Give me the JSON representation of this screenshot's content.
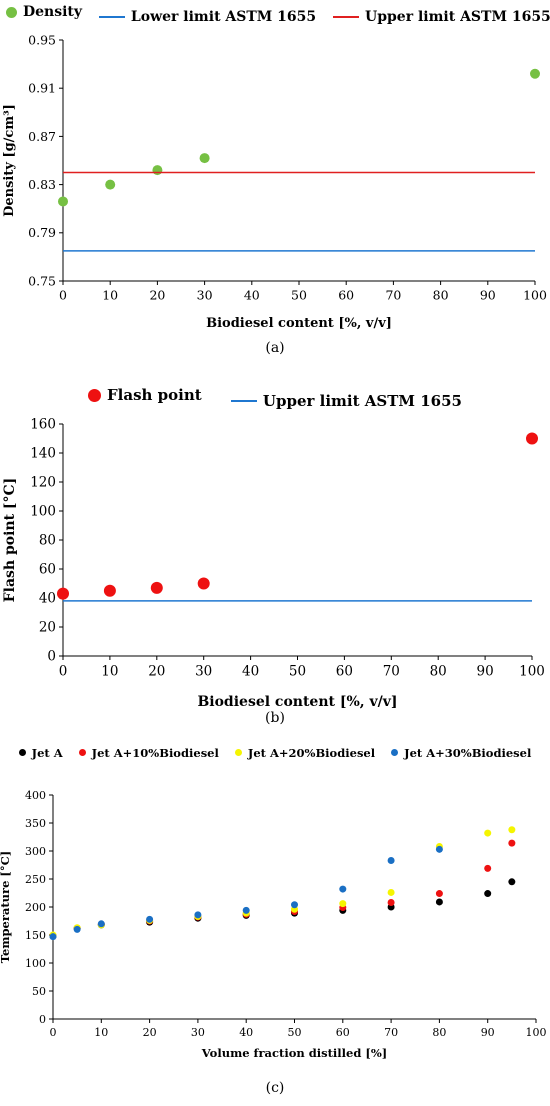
{
  "chart_data": [
    {
      "panel": "a",
      "type": "scatter",
      "xlabel": "Biodiesel content [%, v/v]",
      "ylabel": "Density [g/cm³]",
      "xlim": [
        0,
        100
      ],
      "ylim": [
        0.75,
        0.95
      ],
      "xticks": [
        0,
        10,
        20,
        30,
        40,
        50,
        60,
        70,
        80,
        90,
        100
      ],
      "yticks": [
        0.75,
        0.79,
        0.83,
        0.87,
        0.91,
        0.95
      ],
      "ytick_labels": [
        "0.75",
        "0.79",
        "0.83",
        "0.87",
        "0.91",
        "0.95"
      ],
      "legend_placement": "top",
      "series": [
        {
          "name": "Density",
          "kind": "points",
          "color": "#76c043",
          "x": [
            0,
            10,
            20,
            30,
            100
          ],
          "y": [
            0.816,
            0.83,
            0.842,
            0.852,
            0.922
          ]
        },
        {
          "name": "Lower limit ASTM 1655",
          "kind": "hline",
          "color": "#1f77d0",
          "y": 0.775
        },
        {
          "name": "Upper limit ASTM 1655",
          "kind": "hline",
          "color": "#e02020",
          "y": 0.84
        }
      ],
      "caption": "(a)"
    },
    {
      "panel": "b",
      "type": "scatter",
      "xlabel": "Biodiesel content [%, v/v]",
      "ylabel": "Flash point  [°C]",
      "xlim": [
        0,
        100
      ],
      "ylim": [
        0,
        160
      ],
      "xticks": [
        0,
        10,
        20,
        30,
        40,
        50,
        60,
        70,
        80,
        90,
        100
      ],
      "yticks": [
        0,
        20,
        40,
        60,
        80,
        100,
        120,
        140,
        160
      ],
      "legend_placement": "top",
      "series": [
        {
          "name": "Flash point",
          "kind": "points",
          "color": "#ee1111",
          "x": [
            0,
            10,
            20,
            30,
            100
          ],
          "y": [
            43,
            45,
            47,
            50,
            150
          ]
        },
        {
          "name": "Upper limit ASTM 1655",
          "kind": "hline",
          "color": "#1f77d0",
          "y": 38
        }
      ],
      "caption": "(b)"
    },
    {
      "panel": "c",
      "type": "scatter",
      "xlabel": "Volume fraction distilled [%]",
      "ylabel": "Temperature [°C]",
      "xlim": [
        0,
        100
      ],
      "ylim": [
        0,
        400
      ],
      "xticks": [
        0,
        10,
        20,
        30,
        40,
        50,
        60,
        70,
        80,
        90,
        100
      ],
      "yticks": [
        0,
        50,
        100,
        150,
        200,
        250,
        300,
        350,
        400
      ],
      "legend_placement": "top",
      "x": [
        0,
        5,
        10,
        20,
        30,
        40,
        50,
        60,
        70,
        80,
        90,
        95
      ],
      "series": [
        {
          "name": "Jet A",
          "color": "#000000",
          "y": [
            148,
            162,
            168,
            173,
            180,
            185,
            189,
            194,
            200,
            209,
            224,
            245
          ]
        },
        {
          "name": "Jet A+10%Biodiesel",
          "color": "#ee1111",
          "y": [
            149,
            162,
            169,
            175,
            182,
            187,
            192,
            199,
            208,
            224,
            269,
            314
          ]
        },
        {
          "name": "Jet A+20%Biodiesel",
          "color": "#f5f500",
          "y": [
            150,
            163,
            168,
            176,
            183,
            189,
            196,
            206,
            226,
            308,
            332,
            338
          ]
        },
        {
          "name": "Jet A+30%Biodiesel",
          "color": "#1a6fc4",
          "y": [
            147,
            160,
            170,
            178,
            186,
            194,
            204,
            232,
            283,
            303,
            null,
            null
          ]
        }
      ],
      "caption": "(c)"
    }
  ]
}
